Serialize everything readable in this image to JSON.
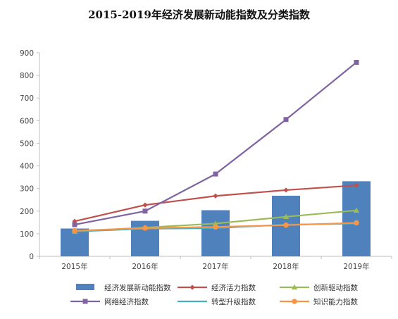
{
  "chart_data": {
    "type": "bar",
    "title": "2015-2019年经济发展新动能指数及分类指数",
    "categories": [
      "2015年",
      "2016年",
      "2017年",
      "2018年",
      "2019年"
    ],
    "ylim": [
      0,
      900
    ],
    "yticks": [
      0,
      100,
      200,
      300,
      400,
      500,
      600,
      700,
      800,
      900
    ],
    "grid": false,
    "legend_position": "bottom",
    "bar_series": {
      "name": "经济发展新动能指数",
      "color": "#4f81bd",
      "values": [
        123,
        157,
        204,
        268,
        332
      ]
    },
    "line_series": [
      {
        "name": "经济活力指数",
        "color": "#c0504d",
        "marker": "diamond",
        "values": [
          155,
          227,
          267,
          293,
          314
        ]
      },
      {
        "name": "创新驱动指数",
        "color": "#9bbb59",
        "marker": "triangle",
        "values": [
          110,
          127,
          145,
          175,
          203
        ]
      },
      {
        "name": "网络经济指数",
        "color": "#8064a2",
        "marker": "square",
        "values": [
          140,
          200,
          364,
          605,
          858
        ]
      },
      {
        "name": "转型升级指数",
        "color": "#4bacc6",
        "marker": "none",
        "values": [
          110,
          122,
          125,
          140,
          145
        ]
      },
      {
        "name": "知识能力指数",
        "color": "#f79646",
        "marker": "circle",
        "values": [
          113,
          125,
          130,
          138,
          148
        ]
      }
    ]
  }
}
